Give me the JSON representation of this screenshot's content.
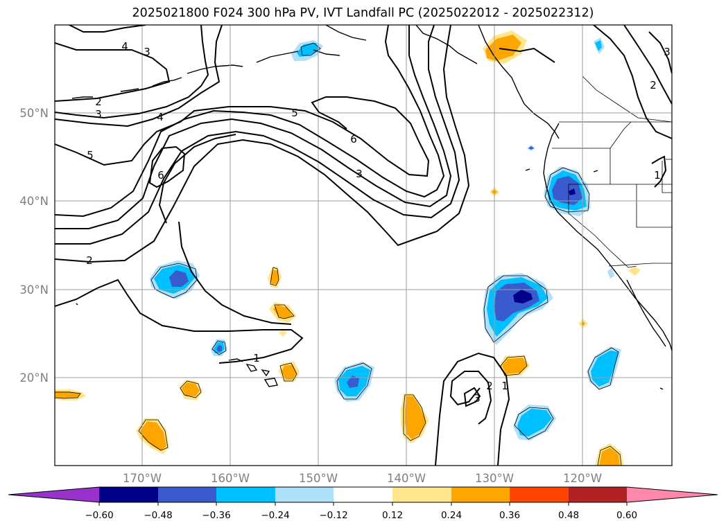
{
  "title": "2025021800 F024 300 hPa PV, IVT Landfall PC (2025022012 - 2025022312)",
  "lat_labels": [
    "50°N",
    "40°N",
    "30°N",
    "20°N"
  ],
  "lon_labels": [
    "170°W",
    "160°W",
    "150°W",
    "140°W",
    "130°W",
    "120°W"
  ],
  "contour_labels": [
    "4",
    "3",
    "2",
    "3",
    "4",
    "5",
    "6",
    "5",
    "6",
    "3",
    "2",
    "1",
    "2",
    "3",
    "1",
    "2",
    "3",
    "1"
  ],
  "colorbar": {
    "ticks": [
      "−0.60",
      "−0.48",
      "−0.36",
      "−0.24",
      "−0.12",
      "0.12",
      "0.24",
      "0.36",
      "0.48",
      "0.60"
    ],
    "colors": [
      "#9932cc",
      "#00008b",
      "#3a5bcd",
      "#00bfff",
      "#aee0fa",
      "#ffffff",
      "#ffe68c",
      "#ffa500",
      "#ff4500",
      "#b22222",
      "#ff88aa"
    ]
  },
  "fill_colors": {
    "neg_light": "#aee0fa",
    "neg_mid": "#00bfff",
    "neg_dark": "#3a5bcd",
    "neg_darkest": "#00008b",
    "pos_light": "#ffe68c",
    "pos_mid": "#ffa500"
  }
}
